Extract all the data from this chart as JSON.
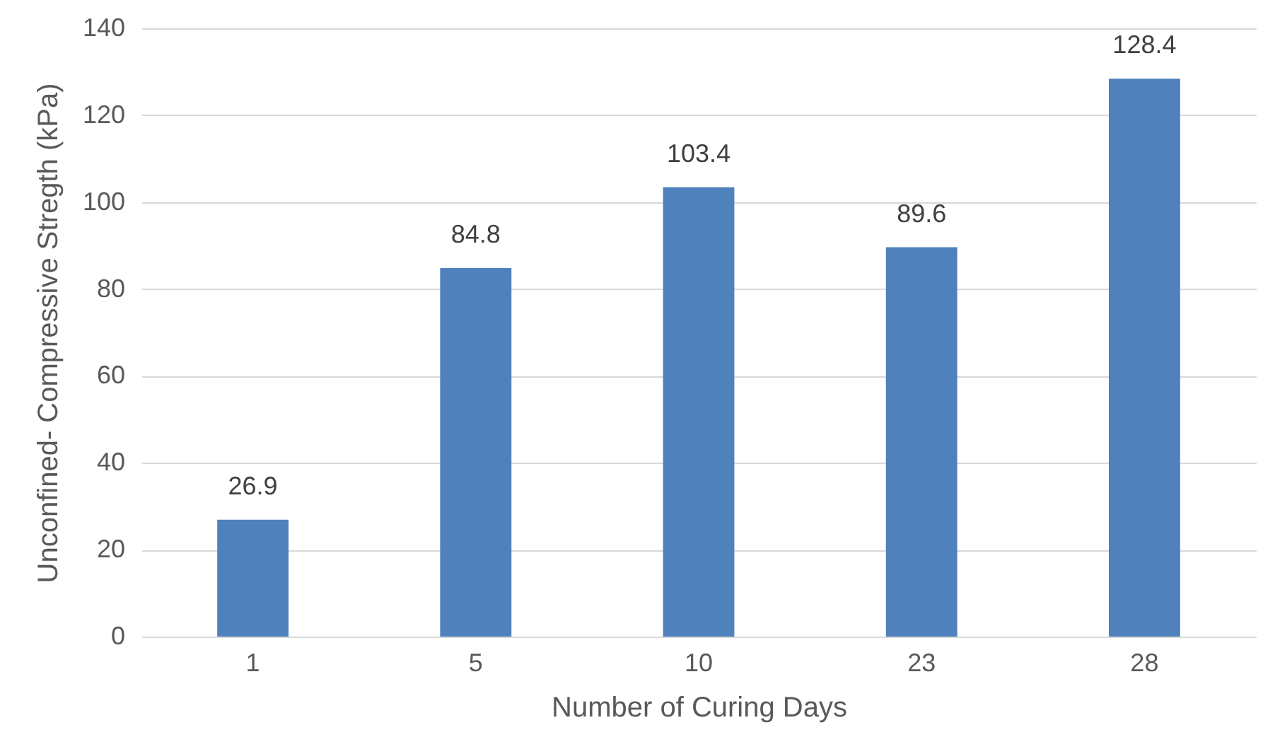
{
  "chart_data": {
    "type": "bar",
    "xlabel": "Number of Curing Days",
    "ylabel": "Unconfined- Compressive Stregth (kPa)",
    "categories": [
      "1",
      "5",
      "10",
      "23",
      "28"
    ],
    "values": [
      26.9,
      84.8,
      103.4,
      89.6,
      128.4
    ],
    "color": "#4f81bd",
    "ylim": [
      0,
      140
    ],
    "yticks": [
      0,
      20,
      40,
      60,
      80,
      100,
      120,
      140
    ],
    "grid": "y",
    "data_labels": true
  }
}
